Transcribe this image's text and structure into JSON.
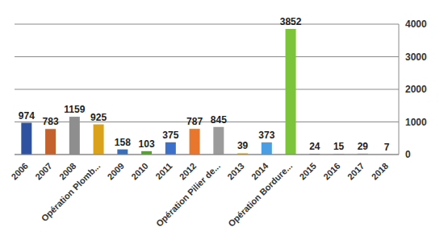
{
  "chart_data": {
    "type": "bar",
    "categories": [
      "2006",
      "2007",
      "2008",
      "Opération Plomb...",
      "2009",
      "2010",
      "2011",
      "2012",
      "Opération Pilier de...",
      "2013",
      "2014",
      "Opération Bordure...",
      "2015",
      "2016",
      "2017",
      "2018"
    ],
    "values": [
      974,
      783,
      1159,
      925,
      158,
      103,
      375,
      787,
      845,
      39,
      373,
      3852,
      24,
      15,
      29,
      7
    ],
    "colors": [
      "#2f52a0",
      "#c4622d",
      "#8e8e8e",
      "#d9a21a",
      "#3a6fb8",
      "#5c9e36",
      "#3d70c9",
      "#e8762c",
      "#9b9b9b",
      "#e2aa10",
      "#4b9ee2",
      "#7cc43a",
      "#5b80c2",
      "#e27c42",
      "#a2a2a2",
      "#e2b232"
    ],
    "ylim": [
      0,
      4000
    ],
    "yticks": [
      0,
      1000,
      2000,
      3000,
      4000
    ],
    "grid": true,
    "data_labels": true
  }
}
